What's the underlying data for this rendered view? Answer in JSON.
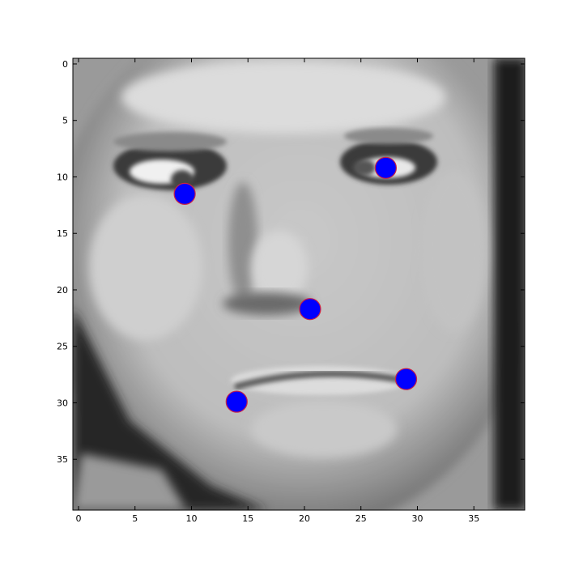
{
  "chart_data": {
    "type": "scatter",
    "background": "grayscale-image",
    "title": "",
    "xlabel": "",
    "ylabel": "",
    "xlim": [
      -0.5,
      39.5
    ],
    "ylim": [
      39.5,
      -0.5
    ],
    "y_inverted": true,
    "grid": false,
    "x_ticks": [
      "0",
      "5",
      "10",
      "15",
      "20",
      "25",
      "30",
      "35"
    ],
    "y_ticks": [
      "0",
      "5",
      "10",
      "15",
      "20",
      "25",
      "30",
      "35"
    ],
    "x_tick_values": [
      0,
      5,
      10,
      15,
      20,
      25,
      30,
      35
    ],
    "y_tick_values": [
      0,
      5,
      10,
      15,
      20,
      25,
      30,
      35
    ],
    "marker": {
      "fill": "#0000ff",
      "edge": "#cc2244",
      "size_px": 13
    },
    "points": [
      {
        "x": 9.4,
        "y": 11.5
      },
      {
        "x": 27.2,
        "y": 9.2
      },
      {
        "x": 20.5,
        "y": 21.7
      },
      {
        "x": 14.0,
        "y": 29.9
      },
      {
        "x": 29.0,
        "y": 27.9
      }
    ]
  }
}
